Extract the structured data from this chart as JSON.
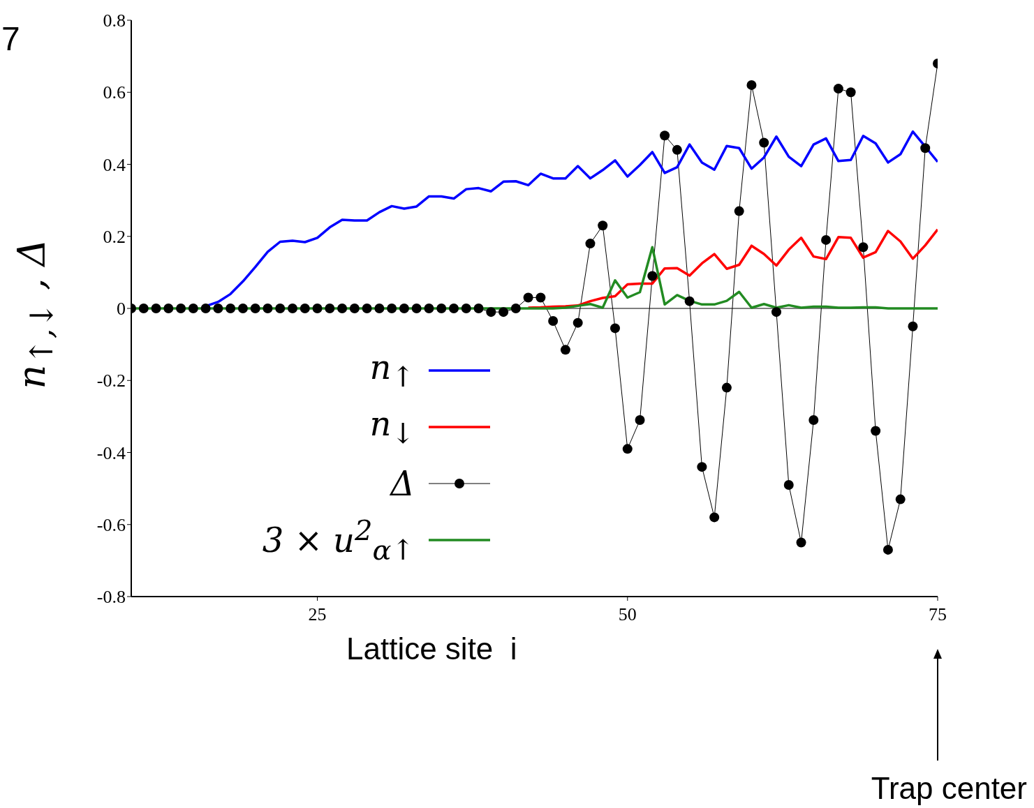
{
  "chart_data": {
    "type": "line",
    "xlabel": "Lattice site  i",
    "ylabel": "n$_{↑,↓}$ , Δ",
    "annotations": [
      "7",
      "Trap center"
    ],
    "x": [
      10,
      11,
      12,
      13,
      14,
      15,
      16,
      17,
      18,
      19,
      20,
      21,
      22,
      23,
      24,
      25,
      26,
      27,
      28,
      29,
      30,
      31,
      32,
      33,
      34,
      35,
      36,
      37,
      38,
      39,
      40,
      41,
      42,
      43,
      44,
      45,
      46,
      47,
      48,
      49,
      50,
      51,
      52,
      53,
      54,
      55,
      56,
      57,
      58,
      59,
      60,
      61,
      62,
      63,
      64,
      65,
      66,
      67,
      68,
      69,
      70,
      71,
      72,
      73,
      74,
      75
    ],
    "xlim": [
      10,
      75
    ],
    "xticks": [
      25,
      50,
      75
    ],
    "ylim": [
      -0.8,
      0.8
    ],
    "yticks": [
      -0.8,
      -0.6,
      -0.4,
      -0.2,
      0,
      0.2,
      0.4,
      0.6,
      0.8
    ],
    "ref_lines": [
      {
        "axis": "y",
        "value": 0,
        "color": "#000000"
      }
    ],
    "legend": "bottom left",
    "series": [
      {
        "name": "n$_{↑}$",
        "color": "#0000ff",
        "marker": "none",
        "values": [
          null,
          null,
          null,
          null,
          null,
          null,
          0.006,
          0.018,
          0.04,
          0.075,
          0.115,
          0.157,
          0.185,
          0.188,
          0.184,
          0.196,
          0.225,
          0.246,
          0.244,
          0.244,
          0.267,
          0.284,
          0.277,
          0.283,
          0.311,
          0.311,
          0.305,
          0.331,
          0.334,
          0.325,
          0.352,
          0.353,
          0.342,
          0.374,
          0.361,
          0.361,
          0.395,
          0.361,
          0.384,
          0.411,
          0.366,
          0.398,
          0.434,
          0.376,
          0.392,
          0.455,
          0.405,
          0.385,
          0.451,
          0.445,
          0.388,
          0.419,
          0.477,
          0.421,
          0.395,
          0.455,
          0.472,
          0.409,
          0.412,
          0.479,
          0.458,
          0.405,
          0.428,
          0.491,
          0.449,
          0.407
        ]
      },
      {
        "name": "n$_{↓}$",
        "color": "#ff0000",
        "marker": "none",
        "values": [
          null,
          null,
          null,
          null,
          null,
          null,
          null,
          null,
          null,
          null,
          null,
          null,
          null,
          null,
          null,
          null,
          null,
          null,
          null,
          null,
          null,
          null,
          null,
          null,
          null,
          null,
          null,
          null,
          null,
          null,
          null,
          null,
          0.002,
          0.003,
          0.005,
          0.006,
          0.008,
          0.02,
          0.029,
          0.034,
          0.067,
          0.069,
          0.069,
          0.111,
          0.112,
          0.091,
          0.125,
          0.151,
          0.11,
          0.121,
          0.174,
          0.151,
          0.119,
          0.163,
          0.196,
          0.144,
          0.137,
          0.198,
          0.196,
          0.141,
          0.156,
          0.215,
          0.186,
          0.138,
          0.175,
          0.219
        ]
      },
      {
        "name": "Δ",
        "color": "#000000",
        "marker": "circle",
        "values": [
          0,
          0,
          0,
          0,
          0,
          0,
          0,
          0,
          0,
          0,
          0,
          0,
          0,
          0,
          0,
          0,
          0,
          0,
          0,
          0,
          0,
          0,
          0,
          0,
          0,
          0,
          0,
          0,
          0,
          -0.01,
          -0.01,
          0,
          0.03,
          0.03,
          -0.035,
          -0.115,
          -0.04,
          0.18,
          0.23,
          -0.055,
          -0.39,
          -0.31,
          0.09,
          0.48,
          0.44,
          0.02,
          -0.44,
          -0.58,
          -0.22,
          0.27,
          0.62,
          0.46,
          -0.01,
          -0.49,
          -0.65,
          -0.31,
          0.19,
          0.61,
          0.6,
          0.17,
          -0.34,
          -0.67,
          -0.53,
          -0.05,
          0.445,
          0.68
        ]
      },
      {
        "name": "3 × u$^{2}$$_{α↑}$",
        "color": "#228b22",
        "marker": "none",
        "values": [
          0,
          0,
          0,
          0,
          0,
          0,
          0,
          0,
          0,
          0,
          0,
          0,
          0,
          0,
          0,
          0,
          0,
          0,
          0,
          0,
          0,
          0,
          0,
          0,
          0,
          0,
          0,
          0,
          0,
          0,
          0,
          0,
          0,
          0,
          0,
          0.002,
          0.007,
          0.012,
          0.002,
          0.078,
          0.03,
          0.045,
          0.17,
          0.011,
          0.037,
          0.021,
          0.011,
          0.011,
          0.021,
          0.046,
          0.002,
          0.012,
          0.002,
          0.009,
          0.002,
          0.005,
          0.005,
          0.002,
          0.002,
          0.003,
          0.003,
          0,
          0,
          0,
          0,
          0
        ]
      }
    ]
  }
}
